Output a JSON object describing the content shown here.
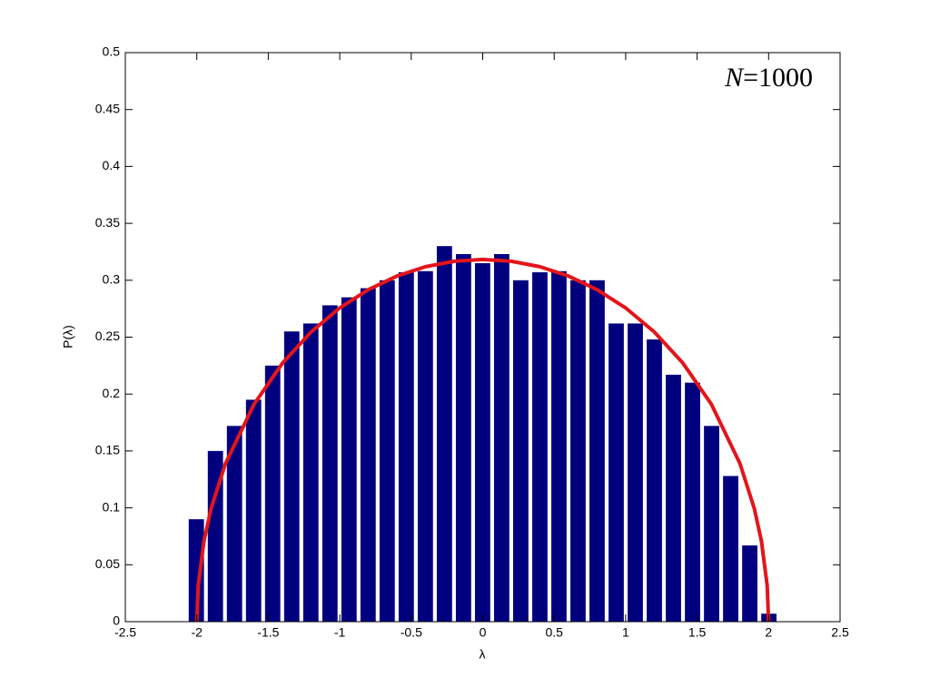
{
  "chart_data": {
    "type": "histogram",
    "xlabel": "λ",
    "ylabel": "P(λ)",
    "annotation": "N=1000",
    "color": "#00007f",
    "bins": [
      -2.07,
      -1.9365,
      -1.803,
      -1.6695,
      -1.536,
      -1.4025,
      -1.269,
      -1.1355,
      -1.002,
      -0.8685,
      -0.735,
      -0.6015,
      -0.468,
      -0.3345,
      -0.201,
      -0.0675,
      0.066,
      0.1995,
      0.333,
      0.4665,
      0.6,
      0.7335,
      0.867,
      1.0005,
      1.134,
      1.2675,
      1.401,
      1.5345,
      1.668,
      1.8015,
      1.935,
      2.0685
    ],
    "values": [
      0.09,
      0.15,
      0.172,
      0.195,
      0.225,
      0.255,
      0.262,
      0.278,
      0.285,
      0.293,
      0.3,
      0.307,
      0.308,
      0.33,
      0.323,
      0.315,
      0.323,
      0.3,
      0.307,
      0.308,
      0.3,
      0.3,
      0.262,
      0.262,
      0.248,
      0.217,
      0.21,
      0.172,
      0.128,
      0.067,
      0.007
    ],
    "curve": {
      "color": "#e3151b",
      "x": [
        -2,
        -1.99,
        -1.95,
        -1.9,
        -1.8,
        -1.6,
        -1.4,
        -1.2,
        -1.0,
        -0.8,
        -0.6,
        -0.4,
        -0.2,
        0,
        0.2,
        0.4,
        0.6,
        0.8,
        1.0,
        1.2,
        1.4,
        1.6,
        1.8,
        1.9,
        1.95,
        1.99,
        2
      ],
      "y": [
        0,
        0.0318,
        0.0707,
        0.0994,
        0.1388,
        0.191,
        0.2273,
        0.2546,
        0.2757,
        0.2917,
        0.3037,
        0.3119,
        0.3167,
        0.3183,
        0.3167,
        0.3119,
        0.3037,
        0.2917,
        0.2757,
        0.2546,
        0.2273,
        0.191,
        0.1388,
        0.0994,
        0.0707,
        0.0318,
        0
      ]
    },
    "xlim": [
      -2.5,
      2.5
    ],
    "xticks": [
      -2.5,
      -2,
      -1.5,
      -1,
      -0.5,
      0,
      0.5,
      1,
      1.5,
      2,
      2.5
    ],
    "ylim": [
      0,
      0.5
    ],
    "yticks": [
      0,
      0.05,
      0.1,
      0.15,
      0.2,
      0.25,
      0.3,
      0.35,
      0.4,
      0.45,
      0.5
    ]
  }
}
